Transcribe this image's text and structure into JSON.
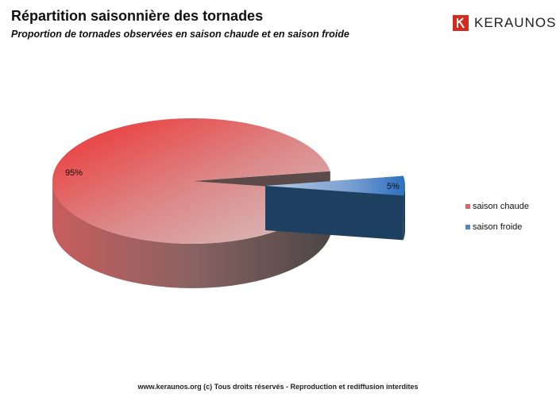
{
  "header": {
    "title": "Répartition saisonnière des tornades",
    "subtitle": "Proportion de tornades observées en saison chaude et en saison froide"
  },
  "brand": {
    "name": "KERAUNOS",
    "icon": "keraunos-logo-icon",
    "color": "#d52b1e"
  },
  "chart_data": {
    "type": "pie",
    "style": "3d-exploded",
    "categories": [
      "saison chaude",
      "saison froide"
    ],
    "values": [
      95,
      5
    ],
    "data_labels": [
      "95%",
      "5%"
    ],
    "colors": [
      "#e83535",
      "#3a78c4"
    ],
    "legend": {
      "position": "right"
    }
  },
  "footer": {
    "text": "www.keraunos.org  (c) Tous droits réservés - Reproduction et rediffusion interdites"
  }
}
